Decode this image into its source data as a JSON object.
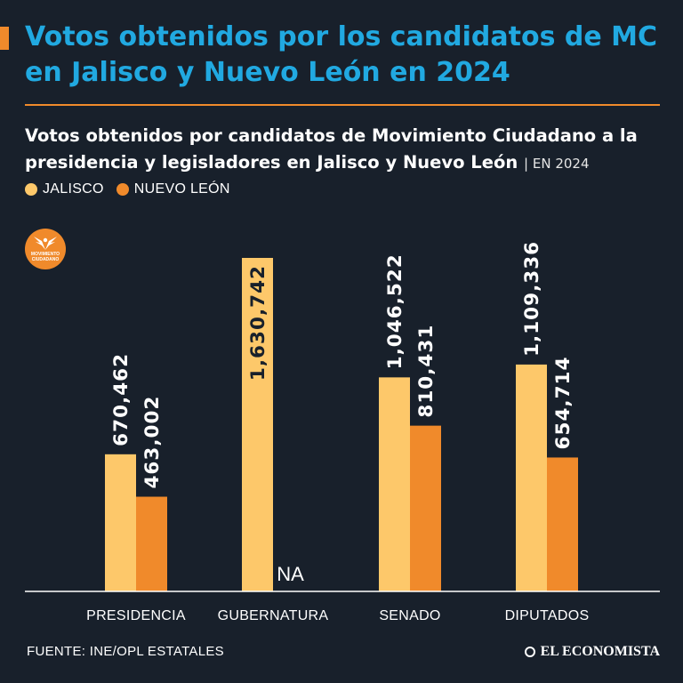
{
  "header": {
    "title": "Votos obtenidos por los candidatos de MC en Jalisco y Nuevo León en 2024"
  },
  "chart_data": {
    "type": "bar",
    "title": "Votos obtenidos por candidatos de Movimiento Ciudadano a la presidencia y legisladores en Jalisco y Nuevo León",
    "title_note": "| EN 2024",
    "categories": [
      "PRESIDENCIA",
      "GUBERNATURA",
      "SENADO",
      "DIPUTADOS"
    ],
    "series": [
      {
        "name": "JALISCO",
        "color": "#fdc86a",
        "values": [
          670462,
          1630742,
          1046522,
          1109336
        ],
        "labels": [
          "670,462",
          "1,630,742",
          "1,046,522",
          "1,109,336"
        ]
      },
      {
        "name": "NUEVO LEÓN",
        "color": "#f08a2b",
        "values": [
          463002,
          null,
          810431,
          654714
        ],
        "labels": [
          "463,002",
          "NA",
          "810,431",
          "654,714"
        ]
      }
    ],
    "ylim": [
      0,
      1630742
    ],
    "xlabel": "",
    "ylabel": "",
    "grid": false
  },
  "logo": {
    "text_line1": "MOVIMIENTO",
    "text_line2": "CIUDADANO"
  },
  "footer": {
    "source": "FUENTE: INE/OPL ESTATALES",
    "brand": "EL ECONOMISTA"
  }
}
